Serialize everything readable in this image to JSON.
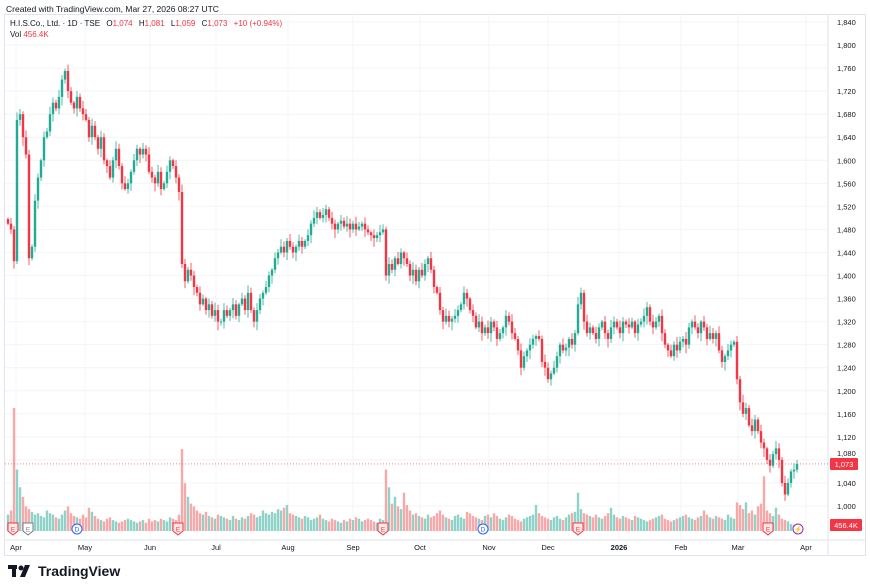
{
  "header": {
    "created": "Created with TradingView.com, Mar 27, 2026 08:27 UTC",
    "symbol": "H.I.S.Co., Ltd. · 1D · TSE",
    "o_label": "O",
    "o": "1,074",
    "h_label": "H",
    "h": "1,081",
    "l_label": "L",
    "l": "1,059",
    "c_label": "C",
    "c": "1,073",
    "change": "+10 (+0.94%)",
    "vol_label": "Vol",
    "vol": "456.4K"
  },
  "footer": {
    "logo_text": "TradingView"
  },
  "colors": {
    "up": "#22ab94",
    "down": "#f23645",
    "vol_up": "#8fd3c8",
    "vol_down": "#f7a9a9",
    "grid": "#f2f4f8",
    "event_earnings": "#f23645",
    "event_dividend": "#2962ff",
    "event_split": "#9c27b0"
  },
  "chart_data": {
    "type": "candlestick",
    "title": "H.I.S.Co., Ltd. · 1D · TSE",
    "ylim": [
      980,
      1850
    ],
    "grid": true,
    "y_ticks": [
      "1,840",
      "1,800",
      "1,760",
      "1,720",
      "1,680",
      "1,640",
      "1,600",
      "1,560",
      "1,520",
      "1,480",
      "1,440",
      "1,400",
      "1,360",
      "1,320",
      "1,280",
      "1,240",
      "1,200",
      "1,160",
      "1,120",
      "1,080",
      "1,040",
      "1,000"
    ],
    "x_ticks": [
      "Apr",
      "May",
      "Jun",
      "Jul",
      "Aug",
      "Sep",
      "Oct",
      "Nov",
      "Dec",
      "2026",
      "Feb",
      "Mar",
      "Apr"
    ],
    "last_price_label": "1,073",
    "last_price": 1073,
    "last_volume_label": "456.4K",
    "close": [
      1490,
      1480,
      1425,
      1670,
      1680,
      1640,
      1610,
      1430,
      1450,
      1530,
      1570,
      1600,
      1640,
      1650,
      1680,
      1700,
      1690,
      1710,
      1740,
      1755,
      1720,
      1700,
      1690,
      1710,
      1690,
      1680,
      1670,
      1640,
      1660,
      1640,
      1620,
      1640,
      1600,
      1590,
      1570,
      1600,
      1620,
      1590,
      1560,
      1550,
      1560,
      1580,
      1600,
      1620,
      1610,
      1620,
      1610,
      1580,
      1570,
      1560,
      1580,
      1550,
      1560,
      1580,
      1600,
      1590,
      1570,
      1545,
      1420,
      1390,
      1410,
      1400,
      1380,
      1370,
      1350,
      1360,
      1340,
      1350,
      1330,
      1340,
      1320,
      1320,
      1340,
      1330,
      1340,
      1350,
      1330,
      1350,
      1360,
      1340,
      1370,
      1340,
      1320,
      1340,
      1360,
      1370,
      1380,
      1400,
      1410,
      1430,
      1440,
      1450,
      1440,
      1460,
      1450,
      1440,
      1450,
      1460,
      1450,
      1460,
      1470,
      1490,
      1500,
      1510,
      1500,
      1505,
      1515,
      1500,
      1490,
      1480,
      1490,
      1495,
      1485,
      1490,
      1480,
      1490,
      1480,
      1485,
      1490,
      1480,
      1475,
      1470,
      1465,
      1470,
      1475,
      1480,
      1400,
      1420,
      1410,
      1430,
      1420,
      1440,
      1430,
      1420,
      1400,
      1410,
      1390,
      1410,
      1400,
      1420,
      1430,
      1410,
      1380,
      1370,
      1340,
      1320,
      1330,
      1320,
      1325,
      1330,
      1340,
      1350,
      1370,
      1360,
      1340,
      1330,
      1310,
      1320,
      1300,
      1310,
      1300,
      1320,
      1310,
      1290,
      1300,
      1310,
      1330,
      1320,
      1300,
      1290,
      1270,
      1240,
      1260,
      1270,
      1280,
      1290,
      1295,
      1290,
      1250,
      1240,
      1220,
      1230,
      1240,
      1260,
      1280,
      1270,
      1275,
      1290,
      1280,
      1300,
      1350,
      1370,
      1320,
      1300,
      1310,
      1300,
      1290,
      1310,
      1320,
      1300,
      1290,
      1310,
      1320,
      1310,
      1300,
      1320,
      1315,
      1310,
      1320,
      1300,
      1315,
      1320,
      1330,
      1345,
      1320,
      1310,
      1320,
      1330,
      1300,
      1280,
      1270,
      1260,
      1280,
      1270,
      1285,
      1290,
      1280,
      1310,
      1320,
      1310,
      1300,
      1320,
      1310,
      1290,
      1300,
      1290,
      1300,
      1270,
      1250,
      1260,
      1270,
      1280,
      1285,
      1220,
      1180,
      1160,
      1170,
      1140,
      1130,
      1150,
      1130,
      1110,
      1100,
      1080,
      1070,
      1090,
      1100,
      1080,
      1040,
      1020,
      1040,
      1060,
      1063,
      1073
    ],
    "volume_k": [
      1200,
      1500,
      9000,
      4500,
      3200,
      2500,
      1800,
      1600,
      1400,
      1200,
      1300,
      1100,
      1000,
      1500,
      1300,
      1200,
      1000,
      900,
      1200,
      1500,
      1800,
      1300,
      1100,
      1000,
      900,
      1200,
      1000,
      1700,
      1400,
      1100,
      900,
      800,
      700,
      900,
      1000,
      800,
      700,
      600,
      700,
      800,
      900,
      800,
      700,
      600,
      700,
      800,
      600,
      900,
      700,
      800,
      700,
      900,
      800,
      700,
      1000,
      900,
      800,
      1200,
      6000,
      3500,
      2500,
      2000,
      1800,
      1500,
      1300,
      1200,
      1400,
      1100,
      1000,
      900,
      1200,
      1100,
      1000,
      900,
      800,
      1100,
      900,
      800,
      1000,
      900,
      1100,
      1300,
      1200,
      1000,
      1100,
      1500,
      1300,
      1200,
      1400,
      1300,
      1600,
      1500,
      1700,
      1900,
      1300,
      1200,
      1100,
      1000,
      900,
      1100,
      1000,
      800,
      900,
      1000,
      1200,
      900,
      800,
      700,
      900,
      800,
      700,
      600,
      800,
      700,
      900,
      800,
      1000,
      900,
      700,
      800,
      900,
      800,
      700,
      600,
      900,
      800,
      4500,
      3200,
      2000,
      2500,
      1800,
      1600,
      2800,
      1900,
      1500,
      1200,
      1300,
      1100,
      1000,
      900,
      1200,
      1000,
      1100,
      1300,
      1500,
      1200,
      1000,
      900,
      800,
      1100,
      1200,
      1000,
      900,
      1400,
      1300,
      1100,
      1000,
      900,
      800,
      1100,
      1200,
      1000,
      1300,
      1100,
      900,
      800,
      1000,
      1200,
      1100,
      900,
      800,
      700,
      900,
      1000,
      1100,
      1200,
      1900,
      1300,
      1100,
      1000,
      900,
      800,
      1000,
      1100,
      900,
      800,
      1000,
      1200,
      1300,
      1400,
      2800,
      1600,
      1300,
      1200,
      1100,
      1000,
      1200,
      1000,
      900,
      1100,
      1300,
      1700,
      1200,
      1000,
      900,
      1100,
      1000,
      900,
      800,
      1100,
      1000,
      900,
      800,
      700,
      800,
      900,
      1000,
      1100,
      1200,
      900,
      800,
      700,
      800,
      900,
      1000,
      1100,
      1200,
      1000,
      900,
      800,
      1000,
      1100,
      1500,
      1200,
      1000,
      900,
      1100,
      1000,
      900,
      800,
      1200,
      1000,
      900,
      2100,
      1900,
      1600,
      2100,
      1300,
      1500,
      1200,
      1800,
      2000,
      4000,
      1500,
      1300,
      1100,
      1700,
      1200,
      900,
      800,
      700,
      500,
      460,
      456.4
    ],
    "events": [
      {
        "type": "earnings",
        "label": "E",
        "date": "Apr"
      },
      {
        "type": "earnings-neutral",
        "label": "E",
        "date": "Apr"
      },
      {
        "type": "dividend",
        "label": "D",
        "date": "May"
      },
      {
        "type": "earnings",
        "label": "E",
        "date": "Jun"
      },
      {
        "type": "earnings",
        "label": "E",
        "date": "Sep"
      },
      {
        "type": "dividend",
        "label": "D",
        "date": "Oct"
      },
      {
        "type": "earnings",
        "label": "E",
        "date": "Dec"
      },
      {
        "type": "earnings",
        "label": "E",
        "date": "Mar"
      },
      {
        "type": "split",
        "label": "⚡",
        "date": "Mar"
      }
    ]
  }
}
